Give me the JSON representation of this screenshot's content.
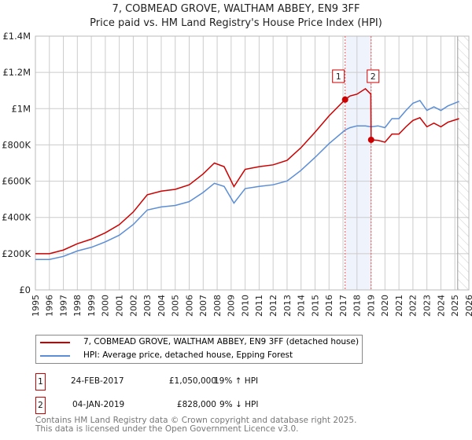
{
  "chart_data": {
    "type": "line",
    "title": "7, COBMEAD GROVE, WALTHAM ABBEY, EN9 3FF",
    "subtitle": "Price paid vs. HM Land Registry's House Price Index (HPI)",
    "xlim": [
      1995,
      2026
    ],
    "ylim": [
      0,
      1400000
    ],
    "yticks": [
      {
        "v": 0,
        "label": "£0"
      },
      {
        "v": 200000,
        "label": "£200K"
      },
      {
        "v": 400000,
        "label": "£400K"
      },
      {
        "v": 600000,
        "label": "£600K"
      },
      {
        "v": 800000,
        "label": "£800K"
      },
      {
        "v": 1000000,
        "label": "£1M"
      },
      {
        "v": 1200000,
        "label": "£1.2M"
      },
      {
        "v": 1400000,
        "label": "£1.4M"
      }
    ],
    "xticks": [
      "1995",
      "1996",
      "1997",
      "1998",
      "1999",
      "2000",
      "2001",
      "2002",
      "2003",
      "2004",
      "2005",
      "2006",
      "2007",
      "2008",
      "2009",
      "2010",
      "2011",
      "2012",
      "2013",
      "2014",
      "2015",
      "2016",
      "2017",
      "2018",
      "2019",
      "2020",
      "2021",
      "2022",
      "2023",
      "2024",
      "2025",
      "2026"
    ],
    "grid": true,
    "highlight_span": [
      2017.15,
      2019.01
    ],
    "forecast_hatch_from": 2025.2,
    "series": [
      {
        "name": "7, COBMEAD GROVE, WALTHAM ABBEY, EN9 3FF (detached house)",
        "color": "#cc0000",
        "x": [
          1995,
          1996,
          1997,
          1998,
          1999,
          2000,
          2001,
          2002,
          2003,
          2004,
          2005,
          2006,
          2007,
          2007.8,
          2008.5,
          2009.2,
          2010,
          2011,
          2012,
          2013,
          2014,
          2015,
          2016,
          2017.15,
          2017.5,
          2018,
          2018.6,
          2018.99,
          2019.01,
          2019.5,
          2020,
          2020.5,
          2021,
          2021.5,
          2022,
          2022.5,
          2023,
          2023.5,
          2024,
          2024.5,
          2025.3
        ],
        "y": [
          200000,
          200000,
          220000,
          255000,
          280000,
          315000,
          360000,
          430000,
          525000,
          545000,
          555000,
          580000,
          640000,
          700000,
          680000,
          570000,
          665000,
          680000,
          690000,
          715000,
          785000,
          870000,
          960000,
          1050000,
          1070000,
          1080000,
          1110000,
          1080000,
          828000,
          825000,
          815000,
          860000,
          860000,
          900000,
          935000,
          950000,
          900000,
          920000,
          900000,
          925000,
          945000
        ]
      },
      {
        "name": "HPI: Average price, detached house, Epping Forest",
        "color": "#5b8ed6",
        "x": [
          1995,
          1996,
          1997,
          1998,
          1999,
          2000,
          2001,
          2002,
          2003,
          2004,
          2005,
          2006,
          2007,
          2007.8,
          2008.5,
          2009.2,
          2010,
          2011,
          2012,
          2013,
          2014,
          2015,
          2016,
          2017.15,
          2017.5,
          2018,
          2018.6,
          2019,
          2019.5,
          2020,
          2020.5,
          2021,
          2021.5,
          2022,
          2022.5,
          2023,
          2023.5,
          2024,
          2024.5,
          2025.3
        ],
        "y": [
          168000,
          168000,
          185000,
          215000,
          235000,
          265000,
          302000,
          361000,
          441000,
          458000,
          466000,
          487000,
          538000,
          588000,
          571000,
          479000,
          559000,
          571000,
          580000,
          601000,
          660000,
          731000,
          807000,
          882000,
          895000,
          905000,
          905000,
          900000,
          905000,
          895000,
          945000,
          945000,
          990000,
          1030000,
          1045000,
          990000,
          1010000,
          990000,
          1015000,
          1040000
        ]
      }
    ],
    "transactions": [
      {
        "id": "1",
        "x": 2017.15,
        "price": 1050000,
        "date": "24-FEB-2017",
        "price_label": "£1,050,000",
        "hpi": "19% ↑ HPI"
      },
      {
        "id": "2",
        "x": 2019.01,
        "price": 828000,
        "date": "04-JAN-2019",
        "price_label": "£828,000",
        "hpi": "9% ↓ HPI"
      }
    ]
  },
  "footer": {
    "line1": "Contains HM Land Registry data © Crown copyright and database right 2025.",
    "line2": "This data is licensed under the Open Government Licence v3.0."
  }
}
